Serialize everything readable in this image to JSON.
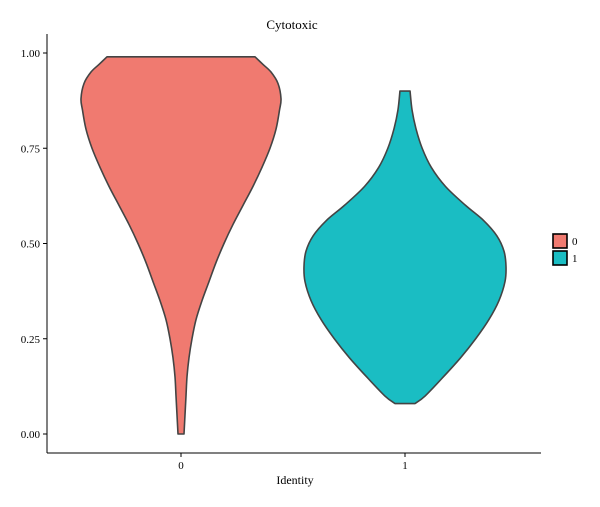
{
  "chart_data": {
    "type": "violin",
    "title": "Cytotoxic",
    "xlabel": "Identity",
    "ylabel": "",
    "ylim": [
      0,
      1
    ],
    "yticks": [
      "0.00",
      "0.25",
      "0.50",
      "0.75",
      "1.00"
    ],
    "yticks_values": [
      0,
      0.25,
      0.5,
      0.75,
      1.0
    ],
    "categories": [
      "0",
      "1"
    ],
    "legend": {
      "position": "right",
      "entries": [
        "0",
        "1"
      ]
    },
    "grid": false,
    "series": [
      {
        "category": "0",
        "color": "#F07A70",
        "min": 0.0,
        "max": 0.99,
        "density_profile": [
          [
            0.0,
            0.03
          ],
          [
            0.05,
            0.04
          ],
          [
            0.1,
            0.05
          ],
          [
            0.15,
            0.06
          ],
          [
            0.2,
            0.08
          ],
          [
            0.25,
            0.11
          ],
          [
            0.3,
            0.15
          ],
          [
            0.35,
            0.21
          ],
          [
            0.4,
            0.28
          ],
          [
            0.45,
            0.35
          ],
          [
            0.5,
            0.43
          ],
          [
            0.55,
            0.52
          ],
          [
            0.6,
            0.62
          ],
          [
            0.65,
            0.72
          ],
          [
            0.7,
            0.81
          ],
          [
            0.75,
            0.89
          ],
          [
            0.8,
            0.95
          ],
          [
            0.85,
            0.985
          ],
          [
            0.88,
            1.0
          ],
          [
            0.92,
            0.97
          ],
          [
            0.95,
            0.9
          ],
          [
            0.97,
            0.82
          ],
          [
            0.99,
            0.74
          ]
        ]
      },
      {
        "category": "1",
        "color": "#1ABDC3",
        "min": 0.08,
        "max": 0.9,
        "density_profile": [
          [
            0.08,
            0.1
          ],
          [
            0.1,
            0.2
          ],
          [
            0.15,
            0.38
          ],
          [
            0.2,
            0.55
          ],
          [
            0.25,
            0.7
          ],
          [
            0.3,
            0.83
          ],
          [
            0.35,
            0.93
          ],
          [
            0.4,
            0.99
          ],
          [
            0.44,
            1.0
          ],
          [
            0.48,
            0.98
          ],
          [
            0.52,
            0.91
          ],
          [
            0.56,
            0.78
          ],
          [
            0.6,
            0.6
          ],
          [
            0.65,
            0.4
          ],
          [
            0.7,
            0.26
          ],
          [
            0.75,
            0.17
          ],
          [
            0.8,
            0.11
          ],
          [
            0.85,
            0.07
          ],
          [
            0.9,
            0.05
          ]
        ]
      }
    ]
  },
  "colors": {
    "category_0": "#F07A70",
    "category_1": "#1ABDC3",
    "outline": "#444444"
  }
}
